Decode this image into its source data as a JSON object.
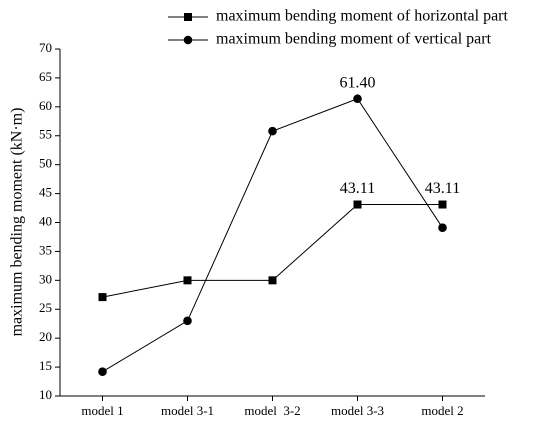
{
  "chart_data": {
    "type": "line",
    "y_label": "maximum bending moment (kN·m)",
    "categories": [
      "model 1",
      "model 3-1",
      "model  3-2",
      "model 3-3",
      "model 2"
    ],
    "series": [
      {
        "name": "maximum bending moment of horizontal part",
        "color": "#000000",
        "marker": "square",
        "values": [
          27.1,
          30,
          30,
          43.11,
          43.11
        ],
        "value_labels": [
          null,
          null,
          null,
          "43.11",
          "43.11"
        ]
      },
      {
        "name": "maximum bending moment of vertical part",
        "color": "#000000",
        "marker": "circle",
        "values": [
          14.2,
          23,
          55.8,
          61.4,
          39.1
        ],
        "value_labels": [
          null,
          null,
          null,
          "61.40",
          null
        ]
      }
    ],
    "ylim": [
      10,
      70
    ],
    "yticks": [
      10,
      15,
      20,
      25,
      30,
      35,
      40,
      45,
      50,
      55,
      60,
      65,
      70
    ],
    "grid": false
  }
}
